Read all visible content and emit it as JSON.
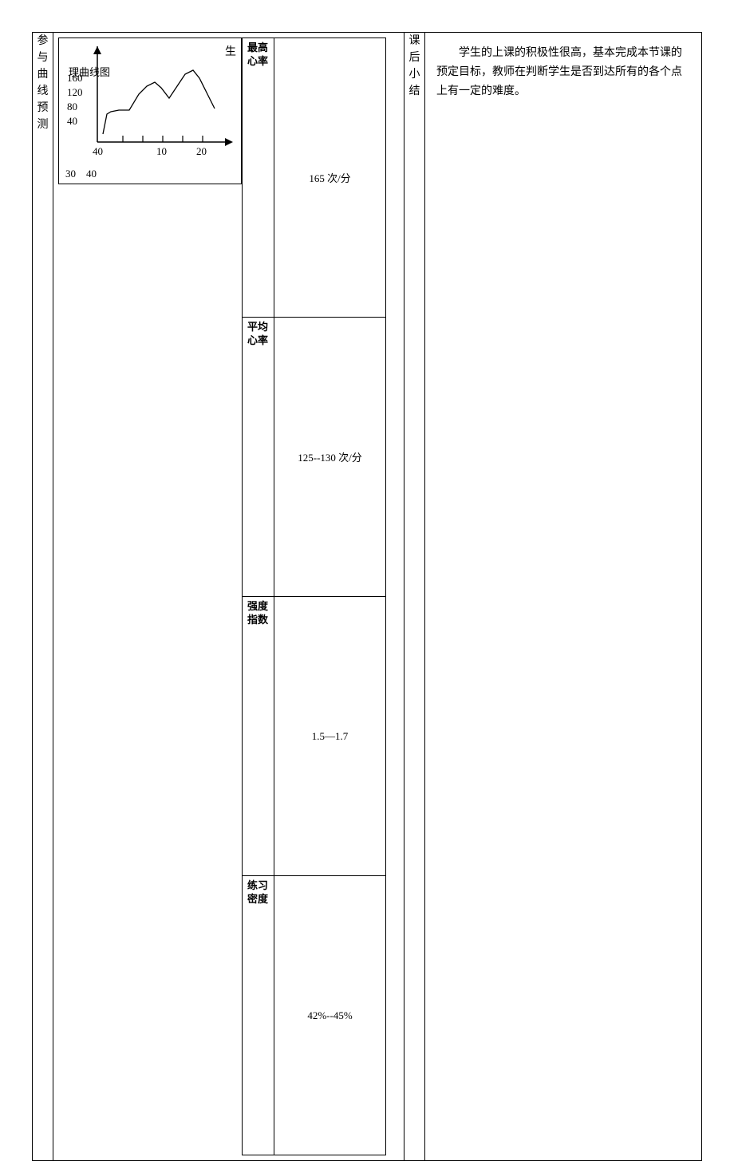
{
  "left_label": "参与曲线预测",
  "mid_label": "课后小结",
  "chart": {
    "type": "line",
    "corner_label": "生",
    "inside_title": "理曲线图",
    "y_ticks": [
      "160",
      "120",
      "80",
      "40"
    ],
    "x_ticks": [
      "10",
      "20"
    ],
    "bottom_left_1": "30",
    "bottom_left_2": "40",
    "y_tick_values": [
      160,
      120,
      80,
      40
    ],
    "x_tick_values": [
      10,
      20
    ],
    "curve_points": [
      [
        55,
        120
      ],
      [
        60,
        95
      ],
      [
        65,
        92
      ],
      [
        75,
        90
      ],
      [
        88,
        90
      ],
      [
        100,
        70
      ],
      [
        110,
        60
      ],
      [
        120,
        55
      ],
      [
        128,
        62
      ],
      [
        138,
        75
      ],
      [
        148,
        60
      ],
      [
        158,
        45
      ],
      [
        168,
        40
      ],
      [
        176,
        50
      ],
      [
        186,
        70
      ],
      [
        195,
        88
      ]
    ],
    "axis_color": "#000000",
    "line_color": "#000000",
    "background_color": "#ffffff",
    "line_width": 1.5,
    "axis_origin_x": 48,
    "axis_origin_y": 130,
    "x_axis_end": 210,
    "y_axis_end": 10,
    "tick_length": 6,
    "arrow_size": 8
  },
  "stats": {
    "row1": {
      "label": "最高\n心率",
      "value": "165 次/分"
    },
    "row2": {
      "label": "平均\n心率",
      "value": "125--130 次/分"
    },
    "row3": {
      "label": "强度\n指数",
      "value": "1.5—1.7"
    },
    "row4": {
      "label": "练习\n密度",
      "value": "42%--45%"
    }
  },
  "summary": "学生的上课的积极性很高，基本完成本节课的预定目标，教师在判断学生是否到达所有的各个点上有一定的难度。"
}
